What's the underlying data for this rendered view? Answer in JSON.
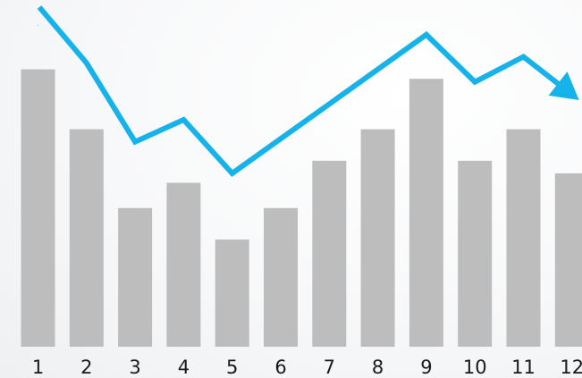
{
  "chart_data": {
    "type": "bar",
    "categories": [
      "1",
      "2",
      "3",
      "4",
      "5",
      "6",
      "7",
      "8",
      "9",
      "10",
      "11",
      "12"
    ],
    "series": [
      {
        "type": "bar",
        "values": [
          88,
          69,
          44,
          52,
          34,
          44,
          59,
          69,
          85,
          59,
          69,
          55
        ]
      },
      {
        "type": "line",
        "values": [
          102,
          90,
          65,
          72,
          55,
          66,
          77,
          88,
          99,
          84,
          92,
          80
        ]
      }
    ],
    "ylim": [
      0,
      110
    ],
    "grid": false,
    "colors": {
      "bar": "#bdbdbd",
      "line": "#16b2ea",
      "tick_label": "#1a1a1a"
    }
  }
}
